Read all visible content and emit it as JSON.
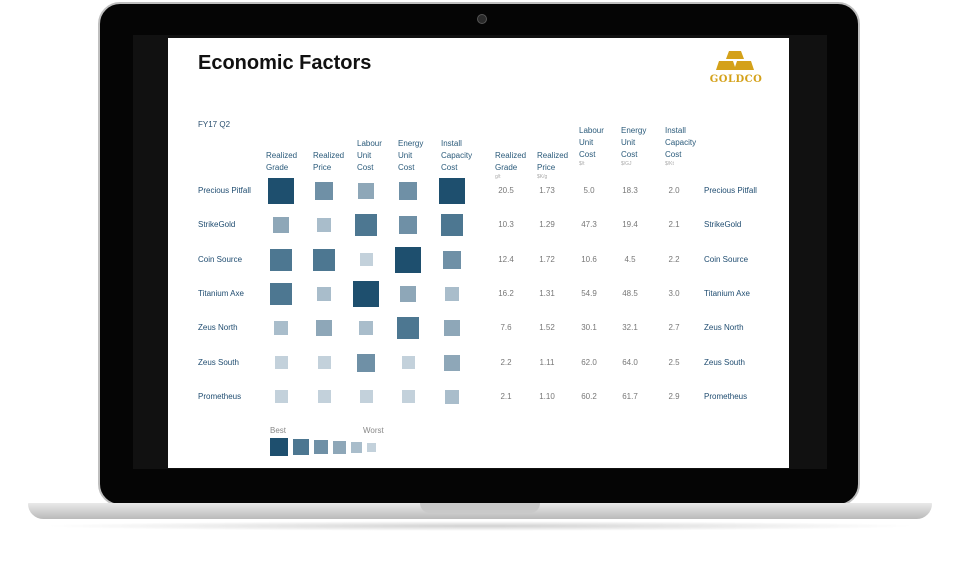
{
  "slide": {
    "title": "Economic Factors",
    "logo_text": "GOLDCO",
    "period": "FY17 Q2",
    "square_headers": [
      "Realized\nGrade",
      "Realized\nPrice",
      "Labour\nUnit\nCost",
      "Energy\nUnit\nCost",
      "Install\nCapacity\nCost"
    ],
    "value_headers": [
      {
        "label": "Realized\nGrade",
        "unit": "g/t"
      },
      {
        "label": "Realized\nPrice",
        "unit": "$K/g"
      },
      {
        "label": "Labour\nUnit\nCost",
        "unit": "$/t"
      },
      {
        "label": "Energy\nUnit\nCost",
        "unit": "$/GJ"
      },
      {
        "label": "Install\nCapacity\nCost",
        "unit": "$/Kt"
      }
    ],
    "rows": [
      {
        "name": "Precious Pitfall",
        "ranks": [
          1,
          3,
          4,
          3,
          1
        ],
        "values": [
          "20.5",
          "1.73",
          "5.0",
          "18.3",
          "2.0"
        ]
      },
      {
        "name": "StrikeGold",
        "ranks": [
          4,
          5,
          2,
          3,
          2
        ],
        "values": [
          "10.3",
          "1.29",
          "47.3",
          "19.4",
          "2.1"
        ]
      },
      {
        "name": "Coin Source",
        "ranks": [
          2,
          2,
          6,
          1,
          3
        ],
        "values": [
          "12.4",
          "1.72",
          "10.6",
          "4.5",
          "2.2"
        ]
      },
      {
        "name": "Titanium Axe",
        "ranks": [
          2,
          5,
          1,
          4,
          5
        ],
        "values": [
          "16.2",
          "1.31",
          "54.9",
          "48.5",
          "3.0"
        ]
      },
      {
        "name": "Zeus North",
        "ranks": [
          5,
          4,
          5,
          2,
          4
        ],
        "values": [
          "7.6",
          "1.52",
          "30.1",
          "32.1",
          "2.7"
        ]
      },
      {
        "name": "Zeus South",
        "ranks": [
          6,
          6,
          3,
          6,
          4
        ],
        "values": [
          "2.2",
          "1.11",
          "62.0",
          "64.0",
          "2.5"
        ]
      },
      {
        "name": "Prometheus",
        "ranks": [
          6,
          6,
          6,
          6,
          5
        ],
        "values": [
          "2.1",
          "1.10",
          "60.2",
          "61.7",
          "2.9"
        ]
      }
    ],
    "legend": {
      "best_label": "Best",
      "worst_label": "Worst",
      "ranks": [
        1,
        2,
        3,
        4,
        5,
        6
      ]
    },
    "colors": {
      "accent": "#1f506f",
      "logo_gold": "#d4a11a",
      "label_text": "#1f4c70"
    }
  }
}
